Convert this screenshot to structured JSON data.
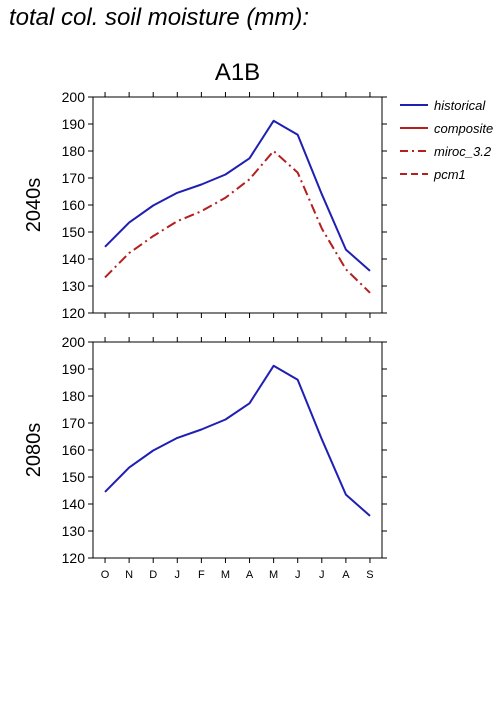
{
  "page": {
    "title": "total col. soil moisture (mm):"
  },
  "chart_data": {
    "type": "line",
    "scenario": "A1B",
    "categories": [
      "O",
      "N",
      "D",
      "J",
      "F",
      "M",
      "A",
      "M",
      "J",
      "J",
      "A",
      "S"
    ],
    "ylim": [
      120,
      200
    ],
    "yticks": [
      120,
      130,
      140,
      150,
      160,
      170,
      180,
      190,
      200
    ],
    "legend_position": "right",
    "legend": [
      {
        "name": "historical",
        "color": "#1f1fb4",
        "dash": "solid"
      },
      {
        "name": "composite",
        "color": "#b41f1f",
        "dash": "solid"
      },
      {
        "name": "miroc_3.2",
        "color": "#b41f1f",
        "dash": "dashdot"
      },
      {
        "name": "pcm1",
        "color": "#b41f1f",
        "dash": "dashed"
      }
    ],
    "panels": [
      {
        "ylabel": "2040s",
        "show_title": true,
        "series": [
          {
            "name": "historical",
            "color": "#1f1fb4",
            "dash": "solid",
            "values": [
              144.5,
              153.5,
              159.8,
              164.5,
              167.6,
              171.3,
              177.3,
              191.2,
              186.0,
              164.0,
              143.5,
              135.6
            ]
          },
          {
            "name": "miroc_3.2",
            "color": "#b41f1f",
            "dash": "dashdot",
            "values": [
              133.2,
              142.2,
              148.5,
              154.0,
              157.7,
              162.7,
              169.5,
              180.0,
              172.0,
              151.3,
              136.2,
              127.5
            ]
          }
        ]
      },
      {
        "ylabel": "2080s",
        "show_title": false,
        "series": [
          {
            "name": "historical",
            "color": "#1f1fb4",
            "dash": "solid",
            "values": [
              144.5,
              153.5,
              159.8,
              164.5,
              167.6,
              171.3,
              177.3,
              191.2,
              186.0,
              164.0,
              143.5,
              135.6
            ]
          }
        ]
      }
    ]
  }
}
